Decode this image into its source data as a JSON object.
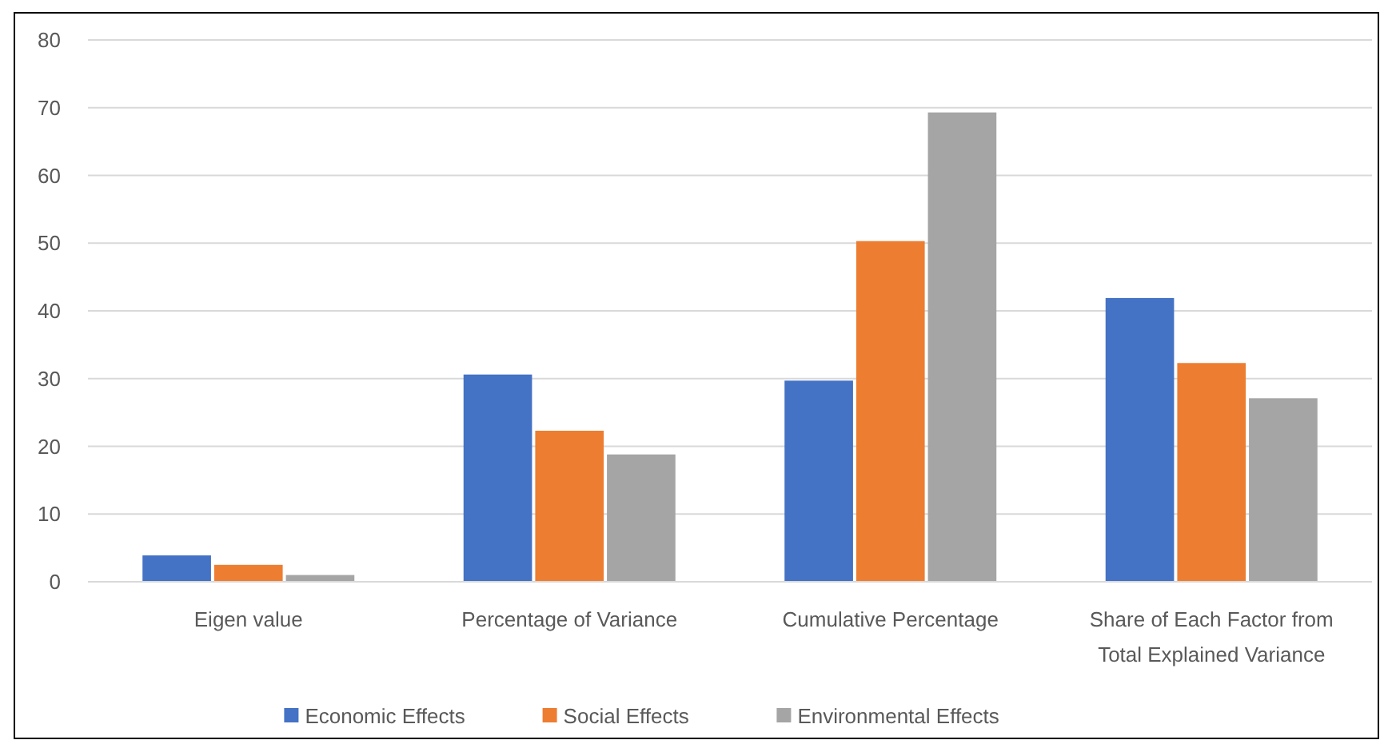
{
  "chart_data": {
    "type": "bar",
    "categories": [
      "Eigen value",
      "Percentage of Variance",
      "Cumulative Percentage",
      "Share of Each Factor from Total Explained Variance"
    ],
    "series": [
      {
        "name": "Economic Effects",
        "color": "#4472c4",
        "values": [
          3.9,
          30.6,
          29.7,
          41.9
        ]
      },
      {
        "name": "Social Effects",
        "color": "#ed7d31",
        "values": [
          2.5,
          22.3,
          50.3,
          32.3
        ]
      },
      {
        "name": "Environmental Effects",
        "color": "#a5a5a5",
        "values": [
          1.0,
          18.8,
          69.3,
          27.1
        ]
      }
    ],
    "ylim": [
      0,
      80
    ],
    "yticks": [
      0,
      10,
      20,
      30,
      40,
      50,
      60,
      70,
      80
    ],
    "grid": "y",
    "legend": "bottom"
  }
}
